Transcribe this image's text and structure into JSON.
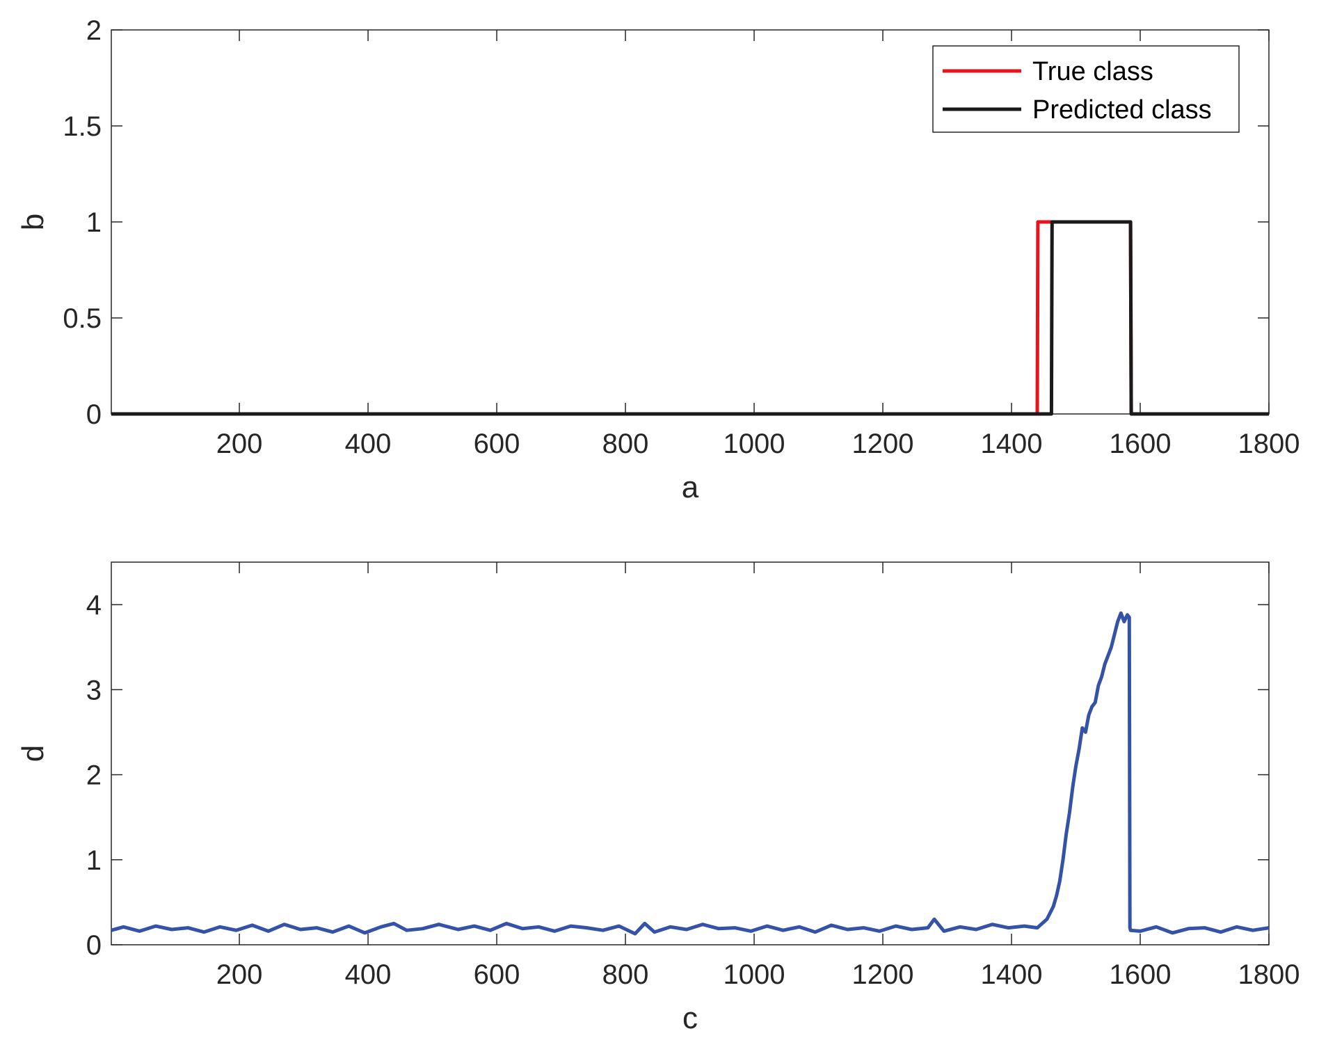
{
  "chart_data": [
    {
      "type": "line",
      "xlabel": "a",
      "ylabel": "b",
      "xlim": [
        1,
        1800
      ],
      "ylim": [
        0,
        2
      ],
      "xticks": [
        200,
        400,
        600,
        800,
        1000,
        1200,
        1400,
        1600,
        1800
      ],
      "yticks": [
        0,
        0.5,
        1,
        1.5,
        2
      ],
      "xtick_labels": [
        "200",
        "400",
        "600",
        "800",
        "1000",
        "1200",
        "1400",
        "1600",
        "1800"
      ],
      "ytick_labels": [
        "0",
        "0.5",
        "1",
        "1.5",
        "2"
      ],
      "grid": false,
      "legend_position": "top-right",
      "series": [
        {
          "name": "True class",
          "color": "#e8141c",
          "x": [
            1,
            1440,
            1441,
            1585,
            1586,
            1800
          ],
          "y": [
            0,
            0,
            1,
            1,
            0,
            0
          ]
        },
        {
          "name": "Predicted class",
          "color": "#1a1a1a",
          "x": [
            1,
            1462,
            1463,
            1585,
            1586,
            1800
          ],
          "y": [
            0,
            0,
            1,
            1,
            0,
            0
          ]
        }
      ]
    },
    {
      "type": "line",
      "xlabel": "c",
      "ylabel": "d",
      "xlim": [
        1,
        1800
      ],
      "ylim": [
        0,
        4.5
      ],
      "xticks": [
        200,
        400,
        600,
        800,
        1000,
        1200,
        1400,
        1600,
        1800
      ],
      "yticks": [
        0,
        1,
        2,
        3,
        4
      ],
      "xtick_labels": [
        "200",
        "400",
        "600",
        "800",
        "1000",
        "1200",
        "1400",
        "1600",
        "1800"
      ],
      "ytick_labels": [
        "0",
        "1",
        "2",
        "3",
        "4"
      ],
      "grid": false,
      "series": [
        {
          "color": "#3352a8",
          "x": [
            1,
            20,
            45,
            70,
            95,
            120,
            145,
            170,
            195,
            220,
            245,
            270,
            295,
            320,
            345,
            370,
            395,
            420,
            440,
            460,
            485,
            510,
            540,
            565,
            590,
            615,
            640,
            665,
            690,
            715,
            740,
            765,
            790,
            815,
            830,
            845,
            870,
            895,
            920,
            945,
            970,
            995,
            1020,
            1045,
            1070,
            1095,
            1120,
            1145,
            1170,
            1195,
            1220,
            1245,
            1270,
            1280,
            1295,
            1320,
            1345,
            1370,
            1395,
            1420,
            1440,
            1455,
            1465,
            1470,
            1475,
            1480,
            1485,
            1490,
            1495,
            1500,
            1505,
            1510,
            1515,
            1520,
            1525,
            1530,
            1535,
            1540,
            1545,
            1550,
            1555,
            1560,
            1565,
            1570,
            1575,
            1580,
            1583,
            1584,
            1585,
            1600,
            1625,
            1650,
            1675,
            1700,
            1725,
            1750,
            1775,
            1800
          ],
          "y": [
            0.17,
            0.21,
            0.16,
            0.22,
            0.18,
            0.2,
            0.15,
            0.21,
            0.17,
            0.23,
            0.16,
            0.24,
            0.18,
            0.2,
            0.15,
            0.22,
            0.14,
            0.21,
            0.25,
            0.17,
            0.19,
            0.24,
            0.18,
            0.22,
            0.17,
            0.25,
            0.19,
            0.21,
            0.16,
            0.22,
            0.2,
            0.17,
            0.22,
            0.13,
            0.25,
            0.15,
            0.21,
            0.18,
            0.24,
            0.19,
            0.2,
            0.16,
            0.22,
            0.17,
            0.21,
            0.15,
            0.23,
            0.18,
            0.2,
            0.16,
            0.22,
            0.18,
            0.2,
            0.3,
            0.16,
            0.21,
            0.18,
            0.24,
            0.2,
            0.22,
            0.2,
            0.3,
            0.45,
            0.58,
            0.75,
            1.0,
            1.3,
            1.55,
            1.85,
            2.1,
            2.3,
            2.55,
            2.5,
            2.7,
            2.8,
            2.85,
            3.05,
            3.15,
            3.3,
            3.4,
            3.5,
            3.65,
            3.8,
            3.9,
            3.8,
            3.88,
            3.85,
            0.2,
            0.17,
            0.16,
            0.21,
            0.14,
            0.19,
            0.2,
            0.15,
            0.21,
            0.17,
            0.2
          ]
        }
      ]
    }
  ],
  "legend": {
    "items": [
      {
        "label": "True class",
        "color": "#e8141c"
      },
      {
        "label": "Predicted class",
        "color": "#1a1a1a"
      }
    ]
  }
}
